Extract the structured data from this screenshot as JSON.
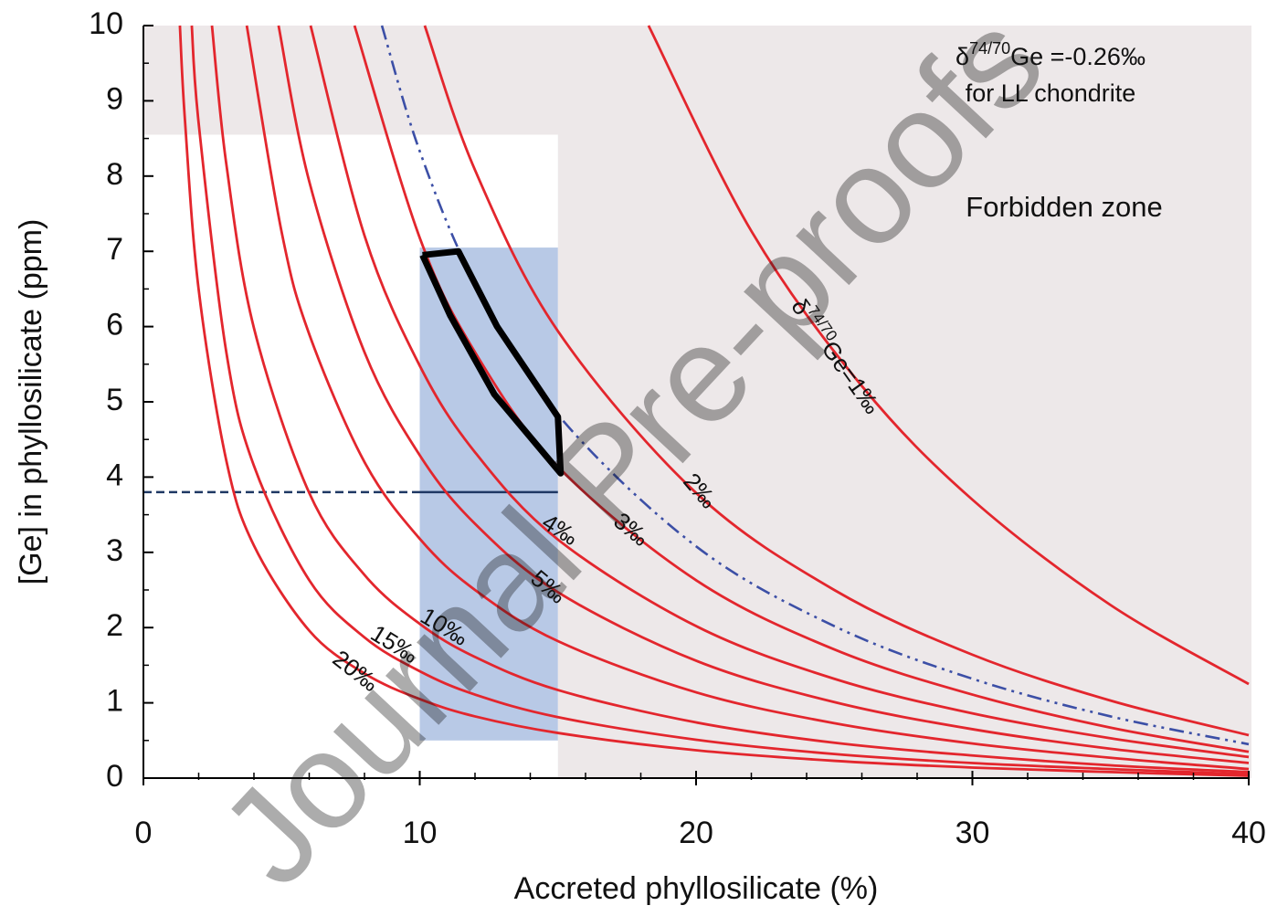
{
  "chart_data": {
    "type": "line",
    "xlabel": "Accreted phyllosilicate (%)",
    "ylabel": "[Ge] in phyllosilicate (ppm)",
    "xlim": [
      0,
      40
    ],
    "ylim": [
      0,
      10
    ],
    "xticks": [
      0,
      10,
      20,
      30,
      40
    ],
    "yticks": [
      0,
      1,
      2,
      3,
      4,
      5,
      6,
      7,
      8,
      9,
      10
    ],
    "xminorticks": [
      2,
      4,
      6,
      8,
      12,
      14,
      16,
      18,
      22,
      24,
      26,
      28,
      32,
      34,
      36,
      38
    ],
    "yminorticks": [
      0.5,
      1.5,
      2.5,
      3.5,
      4.5,
      5.5,
      6.5,
      7.5,
      8.5,
      9.5
    ],
    "forbidden_zone": {
      "label": "Forbidden zone",
      "color": "#ede8e9"
    },
    "allowed_region": {
      "xlim": [
        0,
        15
      ],
      "ylim": [
        0,
        8.55
      ],
      "color": "#ffffff"
    },
    "range_box": {
      "xlim": [
        10,
        15
      ],
      "ylim": [
        0.5,
        7.05
      ],
      "color": "#b8c9e6"
    },
    "outline": {
      "x": [
        10.1,
        11.4,
        12.8,
        15,
        15.1,
        12.7,
        11.1,
        10.1
      ],
      "y": [
        6.95,
        7.0,
        6.0,
        4.8,
        4.05,
        5.1,
        6.15,
        6.95
      ],
      "color": "#000000"
    },
    "reference_line": {
      "y": 3.8,
      "dashed_x": [
        0,
        10
      ],
      "solid_x": [
        10,
        15
      ],
      "color": "#1f3864"
    },
    "note": {
      "line1": {
        "prefix": "δ",
        "sup": "74/70",
        "suffix": "Ge =-0.26‰"
      },
      "line2": "for LL chondrite"
    },
    "watermark": "Journal Pre-proofs",
    "series": [
      {
        "name": "20‰",
        "color": "#e3262d",
        "x": [
          1.32,
          1.5,
          2,
          3,
          4,
          6,
          8,
          10,
          12,
          15,
          20,
          25,
          30,
          35,
          40
        ],
        "values": [
          10,
          8.76,
          6.49,
          4.22,
          3.09,
          1.96,
          1.39,
          1.05,
          0.82,
          0.6,
          0.37,
          0.23,
          0.14,
          0.08,
          0.03
        ]
      },
      {
        "name": "15‰",
        "color": "#e3262d",
        "x": [
          1.75,
          2,
          3,
          4,
          6,
          8,
          10,
          12,
          15,
          20,
          25,
          30,
          35,
          40
        ],
        "values": [
          10,
          8.7,
          5.66,
          4.15,
          2.63,
          1.87,
          1.42,
          1.11,
          0.81,
          0.51,
          0.32,
          0.2,
          0.12,
          0.05
        ]
      },
      {
        "name": "10‰",
        "color": "#e3262d",
        "x": [
          2.48,
          3,
          4,
          6,
          8,
          10,
          12,
          15,
          20,
          25,
          30,
          35,
          40
        ],
        "values": [
          10,
          8.16,
          5.98,
          3.79,
          2.7,
          2.05,
          1.61,
          1.17,
          0.74,
          0.47,
          0.3,
          0.17,
          0.08
        ]
      },
      {
        "color": "#e3262d",
        "x": [
          3.74,
          5,
          6,
          8,
          10,
          12,
          15,
          20,
          25,
          30,
          35,
          40
        ],
        "values": [
          10,
          7.26,
          5.9,
          4.2,
          3.18,
          2.5,
          1.82,
          1.14,
          0.73,
          0.46,
          0.27,
          0.12
        ]
      },
      {
        "name": "5‰",
        "color": "#e3262d",
        "x": [
          4.89,
          6,
          8,
          10,
          12,
          15,
          20,
          25,
          30,
          35,
          40
        ],
        "values": [
          10,
          7.93,
          5.66,
          4.29,
          3.38,
          2.47,
          1.56,
          1.01,
          0.65,
          0.39,
          0.2
        ]
      },
      {
        "name": "4‰",
        "color": "#e3262d",
        "x": [
          6.05,
          8,
          10,
          12,
          15,
          20,
          25,
          30,
          35,
          40
        ],
        "values": [
          10,
          7.21,
          5.48,
          4.33,
          3.17,
          2.02,
          1.32,
          0.86,
          0.53,
          0.28
        ]
      },
      {
        "name": "3‰",
        "color": "#e3262d",
        "x": [
          7.64,
          10,
          12,
          15,
          20,
          25,
          30,
          35,
          40
        ],
        "values": [
          10,
          7.18,
          5.66,
          4.14,
          2.63,
          1.71,
          1.11,
          0.67,
          0.35
        ]
      },
      {
        "color": "#3c4fa6",
        "style": "dashdot",
        "x": [
          8.63,
          10,
          12,
          15,
          20,
          25,
          30,
          35,
          40
        ],
        "values": [
          10,
          8.33,
          6.58,
          4.83,
          3.08,
          2.02,
          1.32,
          0.82,
          0.45
        ]
      },
      {
        "name": "2‰",
        "color": "#e3262d",
        "x": [
          10.18,
          12,
          15,
          20,
          25,
          30,
          35,
          40
        ],
        "values": [
          10,
          8.08,
          5.94,
          3.79,
          2.5,
          1.64,
          1.03,
          0.57
        ]
      },
      {
        "name": {
          "prefix": "δ",
          "sup": "74/70",
          "suffix": "Ge=1‰"
        },
        "color": "#e3262d",
        "x": [
          18.28,
          22,
          26,
          30,
          35,
          40
        ],
        "values": [
          10,
          7.27,
          5.21,
          3.7,
          2.3,
          1.25
        ]
      }
    ]
  }
}
